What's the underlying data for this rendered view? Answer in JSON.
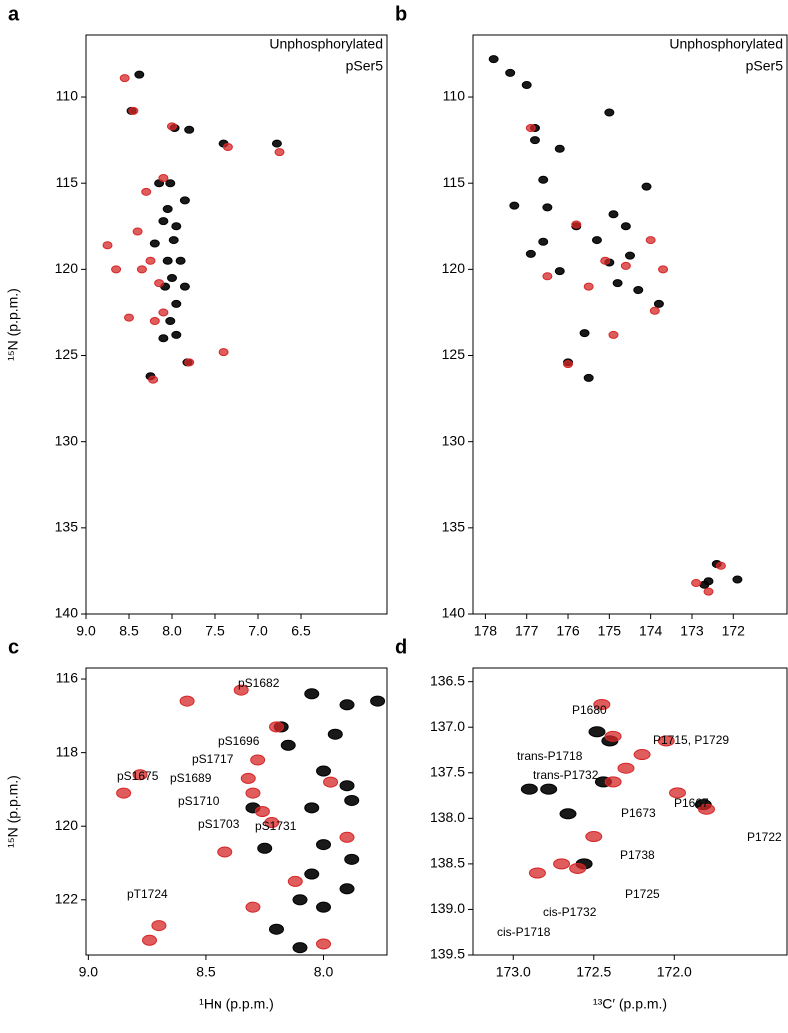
{
  "chart_data": [
    {
      "type": "scatter",
      "panel": "a",
      "y_label": "¹⁵N (p.p.m.)",
      "xlim": [
        9.0,
        5.5
      ],
      "ylim": [
        106.4,
        140
      ],
      "xticks": [
        {
          "value": 9.0,
          "label": "9.0"
        },
        {
          "value": 8.5,
          "label": "8.5"
        },
        {
          "value": 8.0,
          "label": "8.0"
        },
        {
          "value": 7.5,
          "label": "7.5"
        },
        {
          "value": 7.0,
          "label": "7.0"
        },
        {
          "value": 6.5,
          "label": "6.5"
        }
      ],
      "yticks": [
        110,
        115,
        120,
        125,
        130,
        135,
        140
      ],
      "legend": "upper right",
      "series": [
        {
          "name": "Unphosphorylated",
          "color": "#000000",
          "x": [
            8.38,
            8.47,
            7.97,
            7.8,
            7.4,
            6.78,
            8.02,
            8.15,
            7.95,
            8.1,
            8.2,
            7.98,
            8.05,
            7.9,
            8.0,
            7.85,
            7.95,
            8.08,
            8.02,
            7.95,
            8.1,
            7.82,
            8.25,
            7.85,
            8.05
          ],
          "values": [
            108.7,
            110.8,
            111.8,
            111.9,
            112.7,
            112.7,
            115,
            115,
            117.5,
            117.2,
            118.5,
            118.3,
            119.5,
            119.5,
            120.5,
            121,
            122,
            121,
            123,
            123.8,
            124,
            125.4,
            126.2,
            116,
            116.5
          ]
        },
        {
          "name": "pSer5",
          "color": "#d62728",
          "x": [
            8.55,
            8.45,
            8.0,
            7.35,
            6.75,
            8.1,
            8.3,
            8.4,
            8.25,
            8.35,
            8.15,
            8.1,
            8.2,
            7.4,
            7.8,
            8.22,
            8.75,
            8.5,
            8.65
          ],
          "values": [
            108.9,
            110.8,
            111.7,
            112.9,
            113.2,
            114.7,
            115.5,
            117.8,
            119.5,
            120,
            120.8,
            122.5,
            123,
            124.8,
            125.4,
            126.4,
            118.6,
            122.8,
            120
          ]
        }
      ]
    },
    {
      "type": "scatter",
      "panel": "b",
      "xlim": [
        178.3,
        170.7
      ],
      "ylim": [
        106.4,
        140
      ],
      "xticks": [
        178,
        177,
        176,
        175,
        174,
        173,
        172
      ],
      "yticks": [
        110,
        115,
        120,
        125,
        130,
        135,
        140
      ],
      "legend": "upper right",
      "series": [
        {
          "name": "Unphosphorylated",
          "color": "#000000",
          "x": [
            177.8,
            177.4,
            177.0,
            175.0,
            176.8,
            176.8,
            176.2,
            176.6,
            177.3,
            176.5,
            175.8,
            174.1,
            174.9,
            174.6,
            176.6,
            175.3,
            176.9,
            175.0,
            174.5,
            176.2,
            174.8,
            174.3,
            173.8,
            175.6,
            176.0,
            175.5,
            172.7,
            172.4,
            171.9,
            172.6
          ],
          "values": [
            107.8,
            108.6,
            109.3,
            110.9,
            111.8,
            112.5,
            113,
            114.8,
            116.3,
            116.4,
            117.5,
            115.2,
            116.8,
            117.5,
            118.4,
            118.3,
            119.1,
            119.6,
            119.2,
            120.1,
            120.8,
            121.2,
            122,
            123.7,
            125.4,
            126.3,
            138.3,
            137.1,
            138,
            138.1
          ]
        },
        {
          "name": "pSer5",
          "color": "#d62728",
          "x": [
            176.9,
            175.8,
            175.1,
            174.0,
            173.7,
            172.6,
            172.3,
            173.9,
            174.9,
            176.0,
            176.5,
            175.5,
            174.6,
            172.9
          ],
          "values": [
            111.8,
            117.4,
            119.5,
            118.3,
            120,
            138.7,
            137.2,
            122.4,
            123.8,
            125.5,
            120.4,
            121,
            119.8,
            138.2
          ]
        }
      ]
    },
    {
      "type": "scatter",
      "panel": "c",
      "x_label": "¹Hɴ (p.p.m.)",
      "y_label": "¹⁵N (p.p.m.)",
      "xlim": [
        9.01,
        7.73
      ],
      "ylim": [
        115.7,
        123.5
      ],
      "xticks": [
        {
          "value": 9.0,
          "label": "9.0"
        },
        {
          "value": 8.5,
          "label": "8.5"
        },
        {
          "value": 8.0,
          "label": "8.0"
        }
      ],
      "yticks": [
        116,
        118,
        120,
        122
      ],
      "annotations": [
        "pS1682",
        "pS1675",
        "pS1696",
        "pS1717",
        "pS1689",
        "pS1710",
        "pS1703",
        "pS1731",
        "pT1724"
      ],
      "series": [
        {
          "color": "#000000",
          "x": [
            8.05,
            7.9,
            7.77,
            8.18,
            7.95,
            8.15,
            8.0,
            7.9,
            8.05,
            7.88,
            8.0,
            7.88,
            8.05,
            7.9,
            8.1,
            8.0,
            8.2,
            8.1,
            8.25,
            8.3
          ],
          "values": [
            116.4,
            116.7,
            116.6,
            117.3,
            117.5,
            117.8,
            118.5,
            118.9,
            119.5,
            119.3,
            120.5,
            120.9,
            121.3,
            121.7,
            122,
            122.2,
            122.8,
            123.3,
            120.6,
            119.5
          ]
        },
        {
          "color": "#d62728",
          "x": [
            8.85,
            8.78,
            8.58,
            8.35,
            8.2,
            8.28,
            8.32,
            8.3,
            8.26,
            8.22,
            8.42,
            8.7,
            8.74,
            7.97,
            7.9,
            8.12,
            8.0,
            8.3
          ],
          "values": [
            119.1,
            118.6,
            116.6,
            116.3,
            117.3,
            118.2,
            118.7,
            119.1,
            119.6,
            119.9,
            120.7,
            122.7,
            123.1,
            118.8,
            120.3,
            121.5,
            123.2,
            122.2
          ]
        }
      ]
    },
    {
      "type": "scatter",
      "panel": "d",
      "x_label": "¹³C′ (p.p.m.)",
      "xlim": [
        173.25,
        171.3
      ],
      "ylim": [
        136.35,
        139.5
      ],
      "xticks": [
        {
          "value": 173.0,
          "label": "173.0"
        },
        172.5,
        {
          "value": 172.0,
          "label": "172.0"
        }
      ],
      "yticks": [
        136.5,
        {
          "value": 137.0,
          "label": "137.0"
        },
        137.5,
        {
          "value": 138.0,
          "label": "138.0"
        },
        138.5,
        {
          "value": 139.0,
          "label": "139.0"
        },
        139.5
      ],
      "annotations": [
        "P1680",
        "P1715, P1729",
        "trans-P1718",
        "trans-P1732",
        "P1673",
        "P1667",
        "P1722",
        "P1738",
        "P1725",
        "cis-P1732",
        "cis-P1718"
      ],
      "series": [
        {
          "color": "#000000",
          "x": [
            172.9,
            172.78,
            172.66,
            172.48,
            172.4,
            172.44,
            171.82,
            172.56
          ],
          "values": [
            137.68,
            137.68,
            137.95,
            137.05,
            137.15,
            137.6,
            137.85,
            138.5
          ]
        },
        {
          "color": "#d62728",
          "x": [
            172.45,
            172.38,
            172.2,
            172.3,
            172.38,
            172.5,
            172.6,
            172.85,
            172.7,
            171.98,
            171.8,
            172.05
          ],
          "values": [
            136.75,
            137.1,
            137.3,
            137.45,
            137.6,
            138.2,
            138.55,
            138.6,
            138.5,
            137.72,
            137.9,
            137.15
          ]
        }
      ]
    }
  ]
}
